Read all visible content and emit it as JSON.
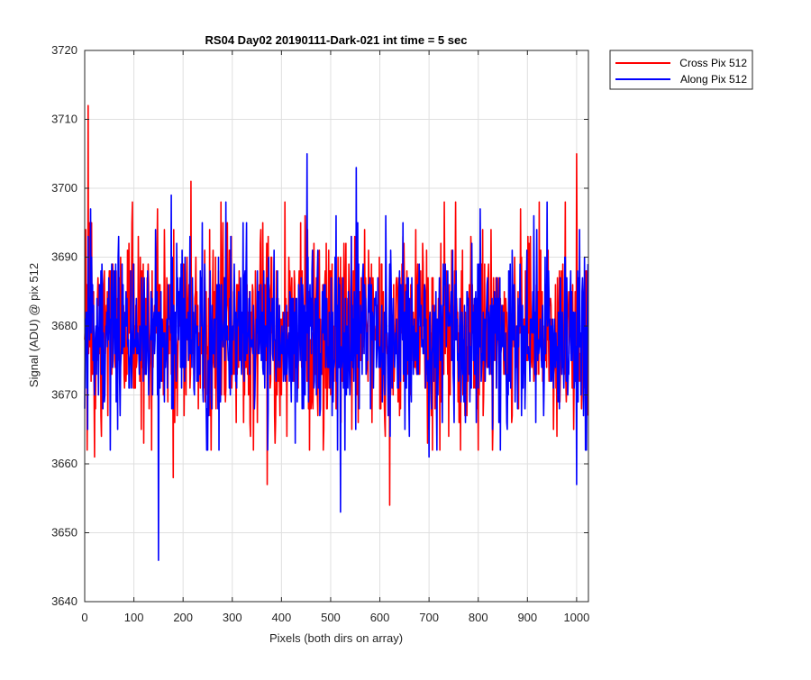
{
  "chart_data": {
    "type": "line",
    "title": "RS04 Day02 20190111-Dark-021 int time = 5 sec",
    "xlabel": "Pixels (both dirs on array)",
    "ylabel": "Signal (ADU) @ pix 512",
    "xlim": [
      0,
      1024
    ],
    "ylim": [
      3640,
      3720
    ],
    "xticks": [
      0,
      100,
      200,
      300,
      400,
      500,
      600,
      700,
      800,
      900,
      1000
    ],
    "yticks": [
      3640,
      3650,
      3660,
      3670,
      3680,
      3690,
      3700,
      3710,
      3720
    ],
    "grid": true,
    "legend_position": "outside-top-right",
    "samples_per_series": 1024,
    "noise_mean": 3679,
    "series": [
      {
        "name": "Cross Pix 512",
        "color": "#ff0000",
        "keypoints": [
          [
            4,
            3686
          ],
          [
            7,
            3712
          ],
          [
            10,
            3695
          ],
          [
            20,
            3661
          ],
          [
            148,
            3697
          ],
          [
            180,
            3658
          ],
          [
            216,
            3701
          ],
          [
            371,
            3657
          ],
          [
            620,
            3654
          ],
          [
            960,
            3664
          ],
          [
            1000,
            3705
          ],
          [
            1020,
            3688
          ]
        ]
      },
      {
        "name": "Along Pix 512",
        "color": "#0000ff",
        "keypoints": [
          [
            0,
            3668
          ],
          [
            12,
            3697
          ],
          [
            150,
            3646
          ],
          [
            176,
            3699
          ],
          [
            452,
            3705
          ],
          [
            520,
            3653
          ],
          [
            552,
            3703
          ],
          [
            700,
            3661
          ],
          [
            940,
            3698
          ],
          [
            1000,
            3657
          ],
          [
            1020,
            3662
          ]
        ]
      }
    ]
  }
}
